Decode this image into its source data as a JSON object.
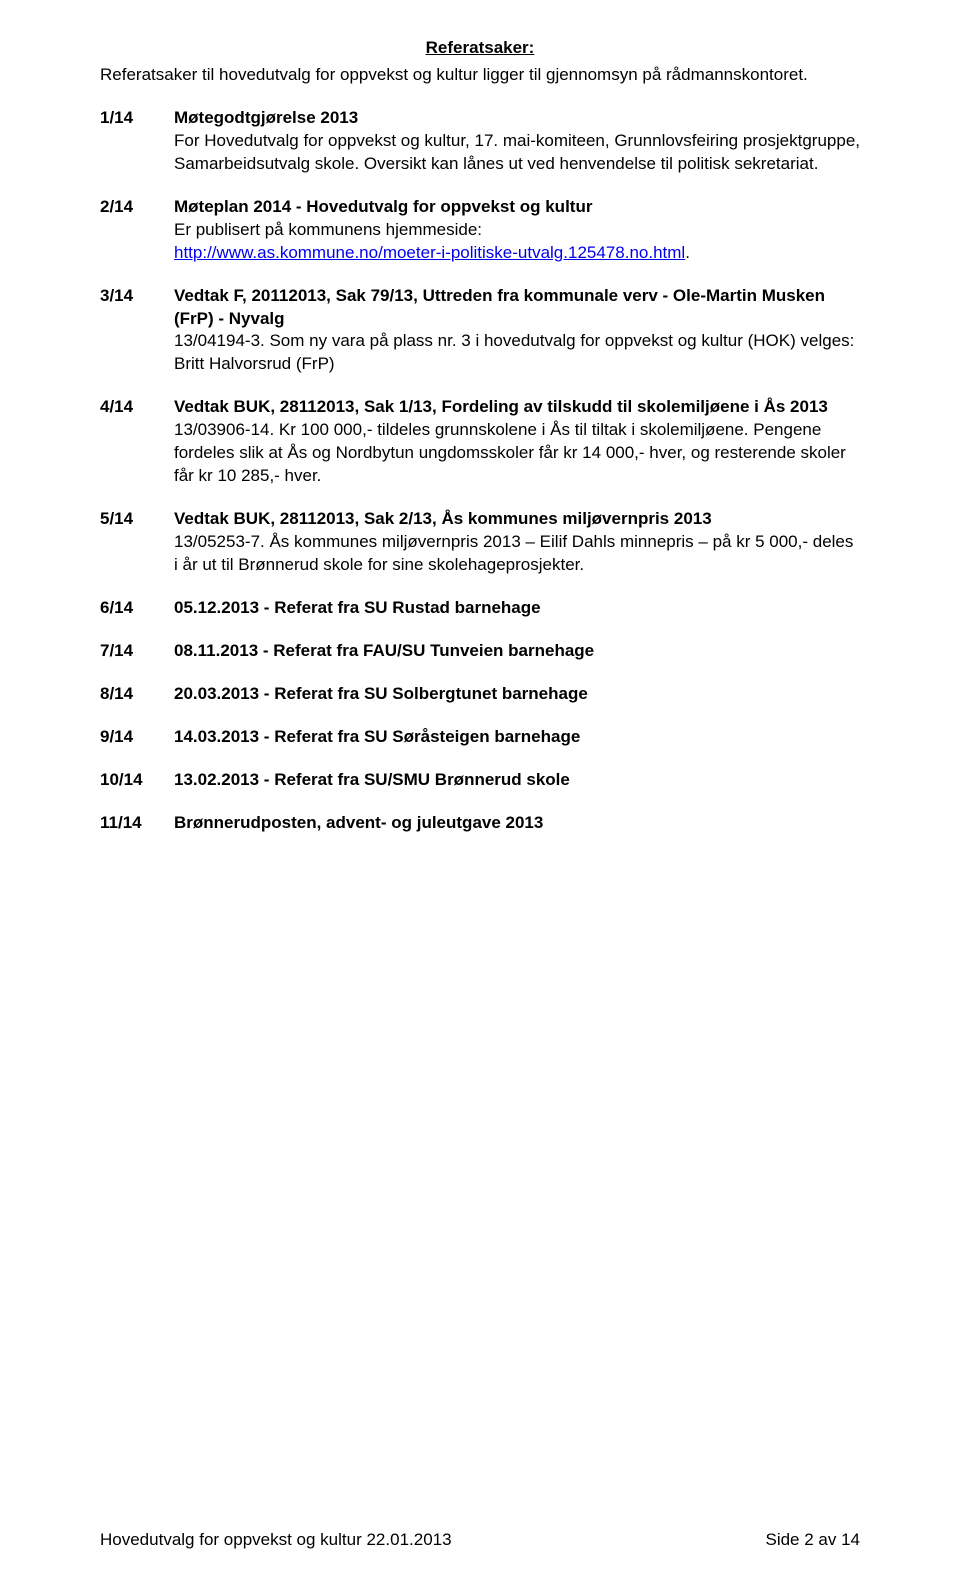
{
  "heading": "Referatsaker:",
  "intro": "Referatsaker til hovedutvalg for oppvekst og kultur ligger til gjennomsyn på rådmannskontoret.",
  "items": [
    {
      "num": "1/14",
      "title": "Møtegodtgjørelse 2013",
      "body": "For Hovedutvalg for oppvekst og kultur, 17. mai-komiteen, Grunnlovsfeiring prosjektgruppe, Samarbeidsutvalg skole. Oversikt kan lånes ut ved henvendelse til politisk sekretariat."
    },
    {
      "num": "2/14",
      "title": "Møteplan 2014 - Hovedutvalg for oppvekst og kultur",
      "body_prefix": "Er publisert på kommunens hjemmeside: ",
      "link": "http://www.as.kommune.no/moeter-i-politiske-utvalg.125478.no.html",
      "body_suffix": "."
    },
    {
      "num": "3/14",
      "title": "Vedtak F, 20112013, Sak 79/13, Uttreden fra kommunale verv - Ole-Martin Musken (FrP) - Nyvalg",
      "body": "13/04194-3. Som ny vara på plass nr. 3 i hovedutvalg for oppvekst og kultur (HOK) velges: Britt Halvorsrud (FrP)"
    },
    {
      "num": "4/14",
      "title": "Vedtak BUK, 28112013, Sak 1/13, Fordeling av tilskudd til skolemiljøene i Ås 2013",
      "body": "13/03906-14. Kr 100 000,- tildeles grunnskolene i Ås til tiltak i skolemiljøene. Pengene fordeles slik at Ås og Nordbytun ungdomsskoler får kr 14 000,- hver, og resterende skoler får kr 10 285,- hver."
    },
    {
      "num": "5/14",
      "title": "Vedtak BUK, 28112013, Sak 2/13, Ås kommunes miljøvernpris 2013",
      "body": "13/05253-7. Ås kommunes miljøvernpris 2013 – Eilif Dahls minnepris – på kr 5 000,- deles i år ut til Brønnerud skole for sine skolehageprosjekter."
    },
    {
      "num": "6/14",
      "title": "05.12.2013 - Referat fra SU Rustad barnehage"
    },
    {
      "num": "7/14",
      "title": "08.11.2013 - Referat fra FAU/SU Tunveien barnehage"
    },
    {
      "num": "8/14",
      "title": "20.03.2013 - Referat fra SU Solbergtunet barnehage"
    },
    {
      "num": "9/14",
      "title": "14.03.2013 - Referat fra SU Søråsteigen barnehage"
    },
    {
      "num": "10/14",
      "title": "13.02.2013 - Referat fra SU/SMU Brønnerud skole"
    },
    {
      "num": "11/14",
      "title": "Brønnerudposten, advent- og juleutgave 2013"
    }
  ],
  "footer_left": "Hovedutvalg for oppvekst og kultur 22.01.2013",
  "footer_right": "Side 2 av 14"
}
